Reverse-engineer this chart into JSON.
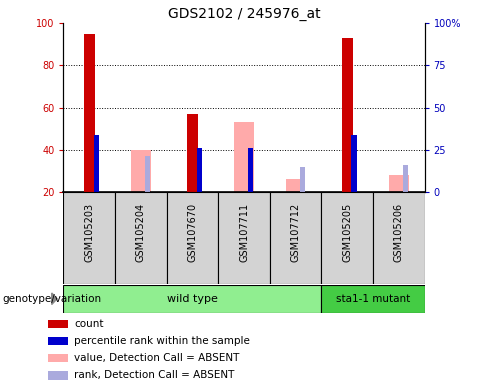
{
  "title": "GDS2102 / 245976_at",
  "samples": [
    "GSM105203",
    "GSM105204",
    "GSM107670",
    "GSM107711",
    "GSM107712",
    "GSM105205",
    "GSM105206"
  ],
  "red_bars": [
    95,
    0,
    57,
    0,
    0,
    93,
    0
  ],
  "blue_bars": [
    47,
    0,
    41,
    41,
    0,
    47,
    0
  ],
  "pink_bars": [
    0,
    40,
    0,
    53,
    26,
    0,
    28
  ],
  "lightblue_bars": [
    0,
    37,
    0,
    0,
    32,
    0,
    33
  ],
  "ymin": 20,
  "ymax": 100,
  "yticks_left": [
    20,
    40,
    60,
    80,
    100
  ],
  "yticks_right": [
    0,
    25,
    50,
    75,
    100
  ],
  "ytick_labels_right": [
    "0",
    "25",
    "50",
    "75",
    "100%"
  ],
  "red_color": "#cc0000",
  "blue_color": "#0000cc",
  "pink_color": "#ffaaaa",
  "lightblue_color": "#aaaadd",
  "wild_type_label": "wild type",
  "mutant_label": "sta1-1 mutant",
  "genotype_label": "genotype/variation",
  "legend_labels": [
    "count",
    "percentile rank within the sample",
    "value, Detection Call = ABSENT",
    "rank, Detection Call = ABSENT"
  ],
  "bar_width": 0.38,
  "blue_bar_width": 0.1,
  "background_color": "#ffffff",
  "plot_bg_color": "#ffffff",
  "axis_label_color_left": "#cc0000",
  "axis_label_color_right": "#0000bb",
  "sample_box_color": "#d3d3d3",
  "wt_color": "#90ee90",
  "mut_color": "#44cc44",
  "title_fontsize": 10,
  "tick_fontsize": 7,
  "label_fontsize": 7,
  "legend_fontsize": 7.5
}
